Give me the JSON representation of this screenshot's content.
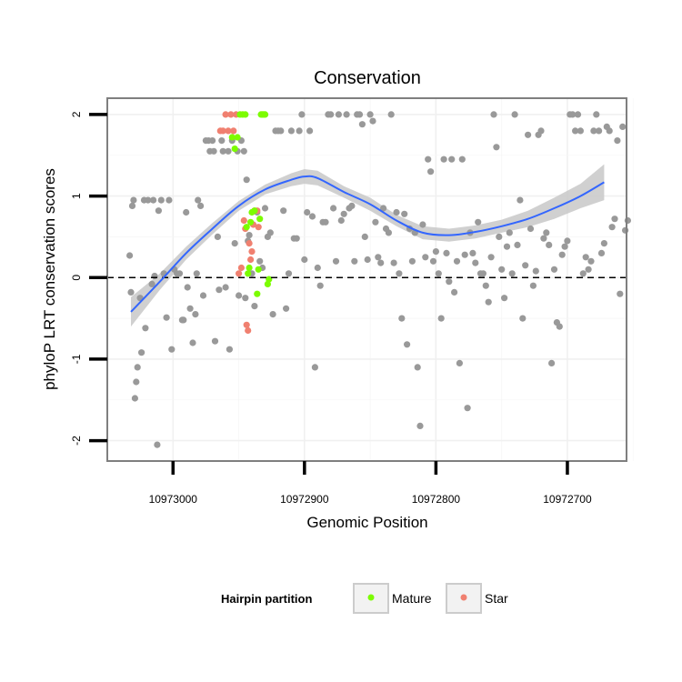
{
  "chart_data": {
    "type": "scatter",
    "title": "Conservation",
    "xlabel": "Genomic Position",
    "ylabel": "phyloP LRT conservation scores",
    "x_reversed": true,
    "xlim": [
      10973050,
      10972655
    ],
    "ylim": [
      -2.25,
      2.2
    ],
    "x_ticks": [
      10973000,
      10972900,
      10972800,
      10972700
    ],
    "y_ticks": [
      -2,
      -1,
      0,
      1,
      2
    ],
    "y_tick_labels": [
      "-2",
      "-1",
      "0",
      "1",
      "2"
    ],
    "reference_line": {
      "y": 0,
      "style": "dashed"
    },
    "grid": true,
    "legend": {
      "position": "bottom",
      "title": "Hairpin partition",
      "entries": [
        {
          "label": "Mature",
          "color": "#7cfc00"
        },
        {
          "label": "Star",
          "color": "#f08070"
        }
      ]
    },
    "colors": {
      "other": "#999999",
      "mature": "#7cfc00",
      "star": "#f08070",
      "smooth": "#3366ff",
      "band": "#c8c8c8"
    },
    "smooth": {
      "x": [
        10973032,
        10973010,
        10972990,
        10972970,
        10972950,
        10972930,
        10972910,
        10972900,
        10972890,
        10972870,
        10972850,
        10972830,
        10972810,
        10972790,
        10972770,
        10972750,
        10972730,
        10972710,
        10972690,
        10972672
      ],
      "y": [
        -0.42,
        -0.05,
        0.3,
        0.6,
        0.88,
        1.08,
        1.2,
        1.24,
        1.22,
        1.05,
        0.9,
        0.7,
        0.55,
        0.52,
        0.56,
        0.63,
        0.72,
        0.85,
        1.0,
        1.17
      ],
      "lower": [
        -0.6,
        -0.15,
        0.22,
        0.53,
        0.82,
        1.02,
        1.12,
        1.15,
        1.13,
        0.98,
        0.82,
        0.63,
        0.47,
        0.44,
        0.48,
        0.55,
        0.62,
        0.72,
        0.85,
        0.95
      ],
      "upper": [
        -0.24,
        0.05,
        0.38,
        0.67,
        0.94,
        1.14,
        1.28,
        1.33,
        1.31,
        1.12,
        0.98,
        0.77,
        0.63,
        0.6,
        0.64,
        0.71,
        0.82,
        0.98,
        1.15,
        1.39
      ]
    },
    "series": [
      {
        "group": "other",
        "points": [
          [
            10973033,
            0.27
          ],
          [
            10973032,
            -0.18
          ],
          [
            10973031,
            0.88
          ],
          [
            10973030,
            0.95
          ],
          [
            10973029,
            -1.48
          ],
          [
            10973028,
            -1.28
          ],
          [
            10973027,
            -1.1
          ],
          [
            10973025,
            -0.25
          ],
          [
            10973024,
            -0.92
          ],
          [
            10973022,
            0.95
          ],
          [
            10973021,
            -0.62
          ],
          [
            10973019,
            0.95
          ],
          [
            10973016,
            -0.08
          ],
          [
            10973015,
            0.95
          ],
          [
            10973014,
            0.02
          ],
          [
            10973012,
            -2.05
          ],
          [
            10973011,
            0.82
          ],
          [
            10973009,
            0.95
          ],
          [
            10973007,
            0.05
          ],
          [
            10973005,
            -0.49
          ],
          [
            10973003,
            0.95
          ],
          [
            10973001,
            -0.88
          ],
          [
            10972999,
            0.1
          ],
          [
            10972997,
            0.05
          ],
          [
            10972995,
            0.05
          ],
          [
            10972993,
            -0.52
          ],
          [
            10972992,
            -0.52
          ],
          [
            10972990,
            0.8
          ],
          [
            10972989,
            -0.12
          ],
          [
            10972987,
            -0.38
          ],
          [
            10972985,
            -0.8
          ],
          [
            10972983,
            -0.45
          ],
          [
            10972982,
            0.05
          ],
          [
            10972981,
            0.95
          ],
          [
            10972979,
            0.88
          ],
          [
            10972977,
            -0.22
          ],
          [
            10972975,
            1.68
          ],
          [
            10972973,
            1.68
          ],
          [
            10972972,
            1.55
          ],
          [
            10972970,
            1.68
          ],
          [
            10972969,
            1.55
          ],
          [
            10972968,
            -0.78
          ],
          [
            10972966,
            0.5
          ],
          [
            10972965,
            -0.15
          ],
          [
            10972963,
            1.68
          ],
          [
            10972962,
            1.55
          ],
          [
            10972960,
            -0.12
          ],
          [
            10972958,
            1.55
          ],
          [
            10972957,
            -0.88
          ],
          [
            10972955,
            1.68
          ],
          [
            10972953,
            0.42
          ],
          [
            10972951,
            1.55
          ],
          [
            10972950,
            -0.22
          ],
          [
            10972948,
            1.68
          ],
          [
            10972946,
            1.55
          ],
          [
            10972945,
            -0.25
          ],
          [
            10972944,
            1.2
          ],
          [
            10972943,
            0.45
          ],
          [
            10972942,
            0.52
          ],
          [
            10972940,
            0.05
          ],
          [
            10972938,
            -0.35
          ],
          [
            10972936,
            0.8
          ],
          [
            10972934,
            0.2
          ],
          [
            10972932,
            0.12
          ],
          [
            10972930,
            0.85
          ],
          [
            10972928,
            0.5
          ],
          [
            10972926,
            0.55
          ],
          [
            10972924,
            -0.45
          ],
          [
            10972922,
            1.8
          ],
          [
            10972920,
            1.8
          ],
          [
            10972918,
            1.8
          ],
          [
            10972916,
            0.82
          ],
          [
            10972914,
            -0.38
          ],
          [
            10972912,
            0.05
          ],
          [
            10972910,
            1.8
          ],
          [
            10972908,
            0.48
          ],
          [
            10972906,
            0.48
          ],
          [
            10972904,
            1.8
          ],
          [
            10972902,
            2.0
          ],
          [
            10972900,
            0.22
          ],
          [
            10972898,
            0.8
          ],
          [
            10972896,
            1.8
          ],
          [
            10972894,
            0.75
          ],
          [
            10972892,
            -1.1
          ],
          [
            10972890,
            0.12
          ],
          [
            10972888,
            -0.1
          ],
          [
            10972886,
            0.68
          ],
          [
            10972884,
            0.68
          ],
          [
            10972882,
            2.0
          ],
          [
            10972880,
            2.0
          ],
          [
            10972878,
            0.85
          ],
          [
            10972876,
            0.2
          ],
          [
            10972874,
            2.0
          ],
          [
            10972872,
            0.7
          ],
          [
            10972870,
            0.78
          ],
          [
            10972868,
            2.0
          ],
          [
            10972866,
            0.85
          ],
          [
            10972864,
            0.88
          ],
          [
            10972862,
            0.2
          ],
          [
            10972860,
            2.0
          ],
          [
            10972858,
            2.0
          ],
          [
            10972856,
            1.88
          ],
          [
            10972854,
            0.5
          ],
          [
            10972852,
            0.22
          ],
          [
            10972850,
            2.0
          ],
          [
            10972848,
            1.92
          ],
          [
            10972846,
            0.68
          ],
          [
            10972844,
            0.25
          ],
          [
            10972842,
            0.18
          ],
          [
            10972840,
            0.85
          ],
          [
            10972838,
            0.6
          ],
          [
            10972836,
            0.55
          ],
          [
            10972834,
            2.0
          ],
          [
            10972832,
            0.18
          ],
          [
            10972830,
            0.8
          ],
          [
            10972828,
            0.05
          ],
          [
            10972826,
            -0.5
          ],
          [
            10972824,
            0.78
          ],
          [
            10972822,
            -0.82
          ],
          [
            10972820,
            0.6
          ],
          [
            10972818,
            0.2
          ],
          [
            10972816,
            0.55
          ],
          [
            10972814,
            -1.1
          ],
          [
            10972812,
            -1.82
          ],
          [
            10972810,
            0.65
          ],
          [
            10972808,
            0.25
          ],
          [
            10972806,
            1.45
          ],
          [
            10972804,
            1.3
          ],
          [
            10972802,
            0.2
          ],
          [
            10972800,
            0.32
          ],
          [
            10972798,
            0.05
          ],
          [
            10972796,
            -0.5
          ],
          [
            10972794,
            1.45
          ],
          [
            10972792,
            0.3
          ],
          [
            10972790,
            -0.05
          ],
          [
            10972788,
            1.45
          ],
          [
            10972786,
            -0.18
          ],
          [
            10972784,
            0.2
          ],
          [
            10972782,
            -1.05
          ],
          [
            10972780,
            1.45
          ],
          [
            10972778,
            0.28
          ],
          [
            10972776,
            -1.6
          ],
          [
            10972774,
            0.55
          ],
          [
            10972772,
            0.3
          ],
          [
            10972770,
            0.18
          ],
          [
            10972768,
            0.68
          ],
          [
            10972766,
            0.05
          ],
          [
            10972764,
            0.05
          ],
          [
            10972762,
            -0.1
          ],
          [
            10972760,
            -0.3
          ],
          [
            10972758,
            0.25
          ],
          [
            10972756,
            2.0
          ],
          [
            10972754,
            1.6
          ],
          [
            10972752,
            0.5
          ],
          [
            10972750,
            0.1
          ],
          [
            10972748,
            -0.25
          ],
          [
            10972746,
            0.38
          ],
          [
            10972744,
            0.55
          ],
          [
            10972742,
            0.05
          ],
          [
            10972740,
            2.0
          ],
          [
            10972738,
            0.4
          ],
          [
            10972736,
            0.95
          ],
          [
            10972734,
            -0.5
          ],
          [
            10972732,
            0.15
          ],
          [
            10972730,
            1.75
          ],
          [
            10972728,
            0.6
          ],
          [
            10972726,
            -0.1
          ],
          [
            10972724,
            0.08
          ],
          [
            10972722,
            1.75
          ],
          [
            10972720,
            1.8
          ],
          [
            10972718,
            0.48
          ],
          [
            10972716,
            0.55
          ],
          [
            10972714,
            0.4
          ],
          [
            10972712,
            -1.05
          ],
          [
            10972710,
            0.1
          ],
          [
            10972708,
            -0.55
          ],
          [
            10972706,
            -0.6
          ],
          [
            10972704,
            0.28
          ],
          [
            10972702,
            0.38
          ],
          [
            10972700,
            0.45
          ],
          [
            10972698,
            2.0
          ],
          [
            10972696,
            2.0
          ],
          [
            10972694,
            1.8
          ],
          [
            10972692,
            2.0
          ],
          [
            10972690,
            1.8
          ],
          [
            10972688,
            0.05
          ],
          [
            10972686,
            0.25
          ],
          [
            10972684,
            0.1
          ],
          [
            10972682,
            0.2
          ],
          [
            10972680,
            1.8
          ],
          [
            10972678,
            2.0
          ],
          [
            10972676,
            1.8
          ],
          [
            10972674,
            0.3
          ],
          [
            10972672,
            0.42
          ],
          [
            10972670,
            1.85
          ],
          [
            10972668,
            1.8
          ],
          [
            10972666,
            0.62
          ],
          [
            10972664,
            0.72
          ],
          [
            10972662,
            1.68
          ],
          [
            10972660,
            -0.2
          ],
          [
            10972658,
            1.85
          ],
          [
            10972656,
            0.58
          ],
          [
            10972654,
            0.7
          ]
        ]
      },
      {
        "group": "star",
        "points": [
          [
            10972964,
            1.8
          ],
          [
            10972962,
            1.8
          ],
          [
            10972960,
            2.0
          ],
          [
            10972958,
            1.8
          ],
          [
            10972956,
            2.0
          ],
          [
            10972954,
            1.8
          ],
          [
            10972952,
            2.0
          ],
          [
            10972950,
            0.05
          ],
          [
            10972948,
            0.12
          ],
          [
            10972946,
            0.7
          ],
          [
            10972945,
            0.6
          ],
          [
            10972944,
            -0.58
          ],
          [
            10972943,
            -0.65
          ],
          [
            10972942,
            0.42
          ],
          [
            10972941,
            0.22
          ],
          [
            10972940,
            0.32
          ],
          [
            10972939,
            0.65
          ],
          [
            10972938,
            0.82
          ],
          [
            10972936,
            0.82
          ],
          [
            10972935,
            0.62
          ]
        ]
      },
      {
        "group": "mature",
        "points": [
          [
            10972955,
            1.72
          ],
          [
            10972953,
            1.58
          ],
          [
            10972951,
            1.72
          ],
          [
            10972949,
            2.0
          ],
          [
            10972947,
            2.0
          ],
          [
            10972945,
            2.0
          ],
          [
            10972944,
            0.62
          ],
          [
            10972943,
            0.05
          ],
          [
            10972942,
            0.12
          ],
          [
            10972941,
            0.68
          ],
          [
            10972940,
            0.8
          ],
          [
            10972938,
            0.82
          ],
          [
            10972936,
            -0.2
          ],
          [
            10972935,
            0.1
          ],
          [
            10972934,
            0.72
          ],
          [
            10972933,
            2.0
          ],
          [
            10972932,
            2.0
          ],
          [
            10972931,
            2.0
          ],
          [
            10972930,
            2.0
          ],
          [
            10972928,
            -0.08
          ],
          [
            10972927,
            -0.02
          ]
        ]
      }
    ]
  }
}
